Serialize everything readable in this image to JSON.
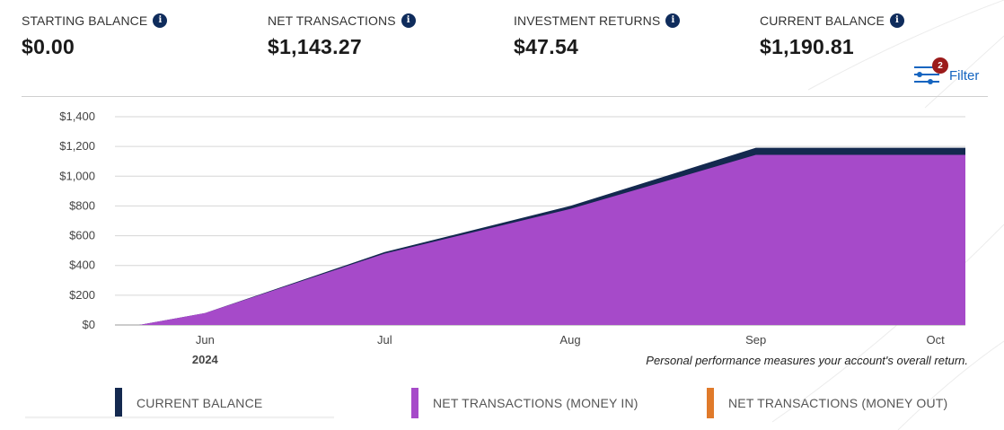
{
  "stats": [
    {
      "label": "STARTING BALANCE",
      "value": "$0.00"
    },
    {
      "label": "NET TRANSACTIONS",
      "value": "$1,143.27"
    },
    {
      "label": "INVESTMENT RETURNS",
      "value": "$47.54"
    },
    {
      "label": "CURRENT BALANCE",
      "value": "$1,190.81"
    }
  ],
  "info_icon": "info-circle-icon",
  "filter": {
    "label": "Filter",
    "badge_count": "2",
    "icon": "sliders-icon"
  },
  "footnote": "Personal performance measures your account's overall return.",
  "legend": [
    {
      "label": "CURRENT BALANCE",
      "color": "#14294f"
    },
    {
      "label": "NET TRANSACTIONS (MONEY IN)",
      "color": "#a64ac9"
    },
    {
      "label": "NET TRANSACTIONS (MONEY OUT)",
      "color": "#e07a2a"
    }
  ],
  "chart_data": {
    "type": "area",
    "x": [
      "2024-05-21",
      "2024-06-01",
      "2024-07-01",
      "2024-08-01",
      "2024-09-01",
      "2024-10-06"
    ],
    "x_ticks": [
      {
        "label": "Jun",
        "date": "2024-06-01"
      },
      {
        "label": "Jul",
        "date": "2024-07-01"
      },
      {
        "label": "Aug",
        "date": "2024-08-01"
      },
      {
        "label": "Sep",
        "date": "2024-09-01"
      },
      {
        "label": "Oct",
        "date": "2024-10-01"
      }
    ],
    "year_label": "2024",
    "series": [
      {
        "name": "CURRENT BALANCE",
        "color": "#14294f",
        "values": [
          0,
          80,
          490,
          800,
          1190.81,
          1190.81
        ]
      },
      {
        "name": "NET TRANSACTIONS (MONEY IN)",
        "color": "#a64ac9",
        "values": [
          0,
          80,
          480,
          780,
          1143.27,
          1143.27
        ]
      }
    ],
    "y_ticks": [
      "$0",
      "$200",
      "$400",
      "$600",
      "$800",
      "$1,000",
      "$1,200",
      "$1,400"
    ],
    "ylim": [
      0,
      1400
    ],
    "grid": true,
    "title": "",
    "xlabel": "",
    "ylabel": ""
  }
}
